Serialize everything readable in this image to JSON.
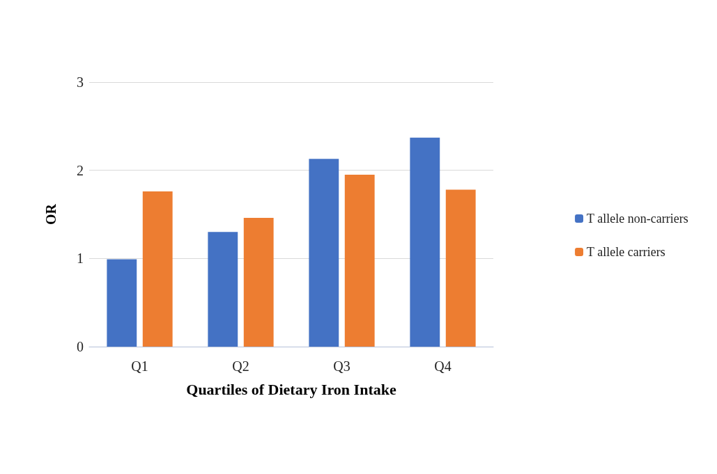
{
  "chart_data": {
    "type": "bar",
    "xlabel": "Quartiles of Dietary Iron Intake",
    "ylabel": "OR",
    "categories": [
      "Q1",
      "Q2",
      "Q3",
      "Q4"
    ],
    "series": [
      {
        "name": "T allele non-carriers",
        "color": "#4472c4",
        "values": [
          0.99,
          1.3,
          2.13,
          2.37
        ]
      },
      {
        "name": "T allele carriers",
        "color": "#ed7d31",
        "values": [
          1.76,
          1.46,
          1.95,
          1.78
        ]
      }
    ],
    "ylim": [
      0,
      3
    ],
    "yticks": [
      0,
      1,
      2,
      3
    ],
    "grid": "y",
    "legend": "right"
  }
}
